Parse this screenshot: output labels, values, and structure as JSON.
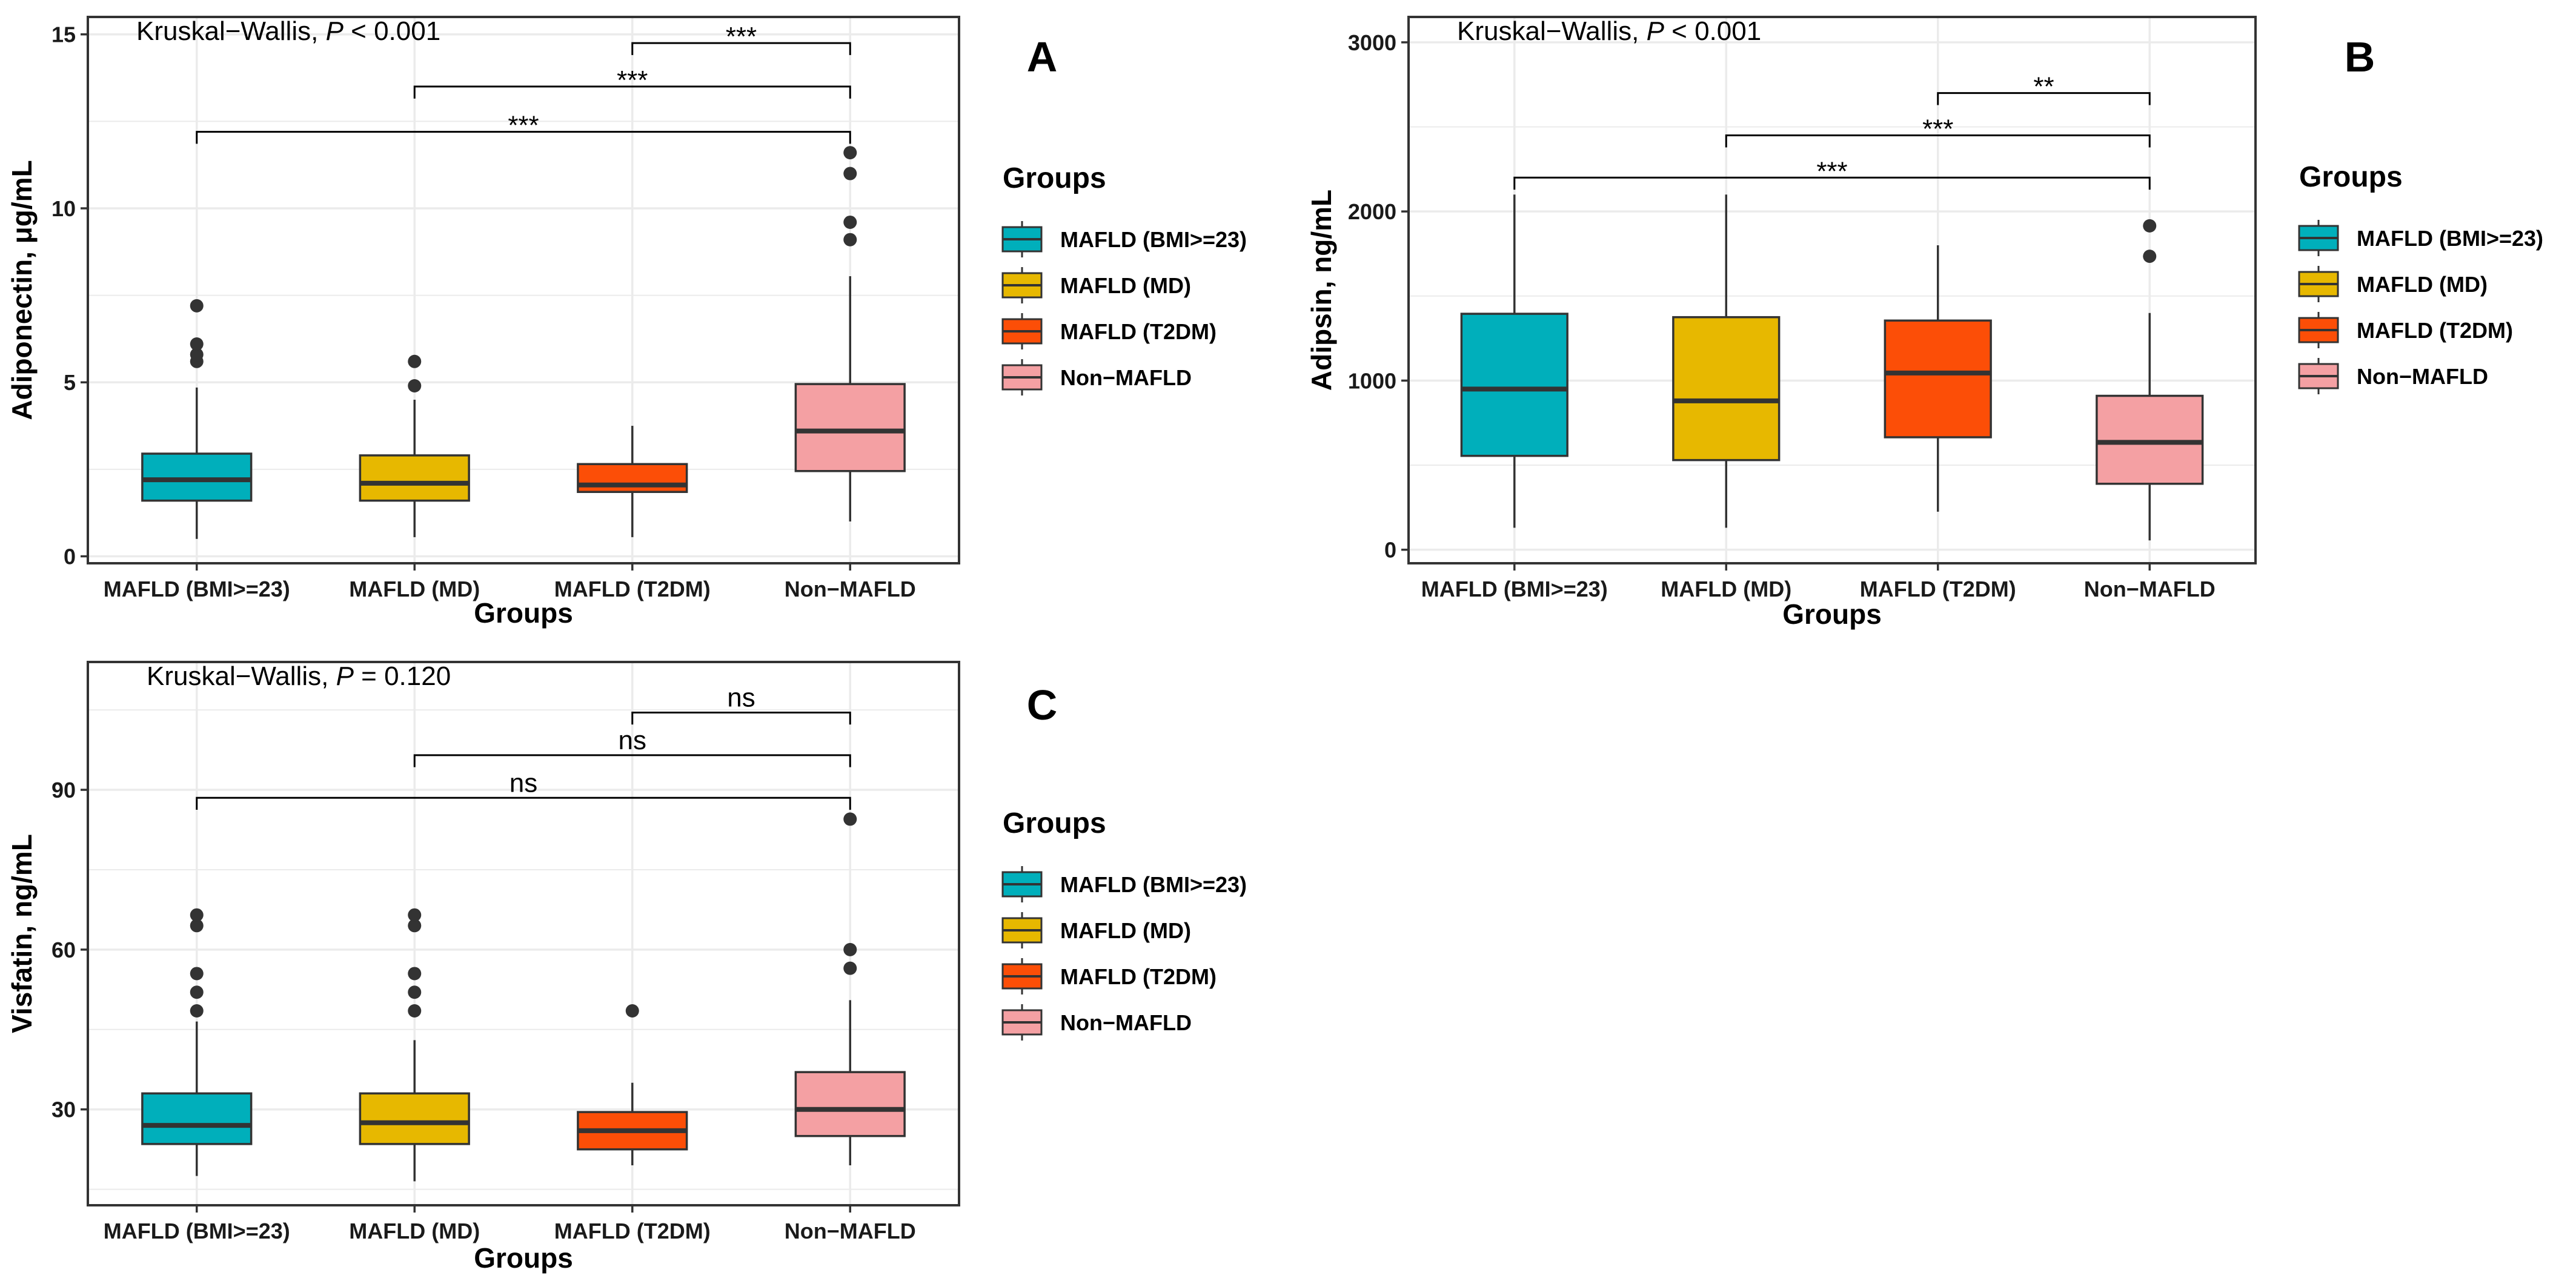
{
  "chart_data": [
    {
      "panel": "A",
      "type": "box",
      "annotation": {
        "prefix": "Kruskal−Wallis, ",
        "p": "P",
        "suffix": " < 0.001"
      },
      "xlabel": "Groups",
      "ylabel": "Adiponectin, μg/mL",
      "ylim": [
        -0.2,
        15.5
      ],
      "yticks": [
        0,
        5,
        10,
        15
      ],
      "ytick_labels": [
        "0",
        "5",
        "10",
        "15"
      ],
      "grid": true,
      "categories": [
        "MAFLD (BMI>=23)",
        "MAFLD (MD)",
        "MAFLD (T2DM)",
        "Non−MAFLD"
      ],
      "series": [
        {
          "group": "MAFLD (BMI>=23)",
          "whisker_low": 0.5,
          "q1": 1.6,
          "median": 2.2,
          "q3": 2.95,
          "whisker_high": 4.85,
          "outliers": [
            5.6,
            5.8,
            6.1,
            7.2
          ]
        },
        {
          "group": "MAFLD (MD)",
          "whisker_low": 0.55,
          "q1": 1.6,
          "median": 2.1,
          "q3": 2.9,
          "whisker_high": 4.5,
          "outliers": [
            4.9,
            5.6
          ]
        },
        {
          "group": "MAFLD (T2DM)",
          "whisker_low": 0.55,
          "q1": 1.85,
          "median": 2.05,
          "q3": 2.65,
          "whisker_high": 3.75,
          "outliers": []
        },
        {
          "group": "Non−MAFLD",
          "whisker_low": 1.0,
          "q1": 2.45,
          "median": 3.6,
          "q3": 4.95,
          "whisker_high": 8.05,
          "outliers": [
            9.1,
            9.6,
            11.0,
            11.6
          ]
        }
      ],
      "comparisons": [
        {
          "from": "MAFLD (T2DM)",
          "to": "Non−MAFLD",
          "label": "***",
          "y": 14.75
        },
        {
          "from": "MAFLD (MD)",
          "to": "Non−MAFLD",
          "label": "***",
          "y": 13.5
        },
        {
          "from": "MAFLD (BMI>=23)",
          "to": "Non−MAFLD",
          "label": "***",
          "y": 12.2
        }
      ]
    },
    {
      "panel": "B",
      "type": "box",
      "annotation": {
        "prefix": "Kruskal−Wallis, ",
        "p": "P",
        "suffix": " < 0.001"
      },
      "xlabel": "Groups",
      "ylabel": "Adipsin, ng/mL",
      "ylim": [
        -80,
        3150
      ],
      "yticks": [
        0,
        1000,
        2000,
        3000
      ],
      "ytick_labels": [
        "0",
        "1000",
        "2000",
        "3000"
      ],
      "grid": true,
      "categories": [
        "MAFLD (BMI>=23)",
        "MAFLD (MD)",
        "MAFLD (T2DM)",
        "Non−MAFLD"
      ],
      "series": [
        {
          "group": "MAFLD (BMI>=23)",
          "whisker_low": 130,
          "q1": 555,
          "median": 950,
          "q3": 1395,
          "whisker_high": 2100,
          "outliers": []
        },
        {
          "group": "MAFLD (MD)",
          "whisker_low": 130,
          "q1": 530,
          "median": 880,
          "q3": 1375,
          "whisker_high": 2100,
          "outliers": []
        },
        {
          "group": "MAFLD (T2DM)",
          "whisker_low": 225,
          "q1": 665,
          "median": 1045,
          "q3": 1355,
          "whisker_high": 1800,
          "outliers": []
        },
        {
          "group": "Non−MAFLD",
          "whisker_low": 55,
          "q1": 390,
          "median": 635,
          "q3": 910,
          "whisker_high": 1400,
          "outliers": [
            1735,
            1915
          ]
        }
      ],
      "comparisons": [
        {
          "from": "MAFLD (T2DM)",
          "to": "Non−MAFLD",
          "label": "**",
          "y": 2700
        },
        {
          "from": "MAFLD (MD)",
          "to": "Non−MAFLD",
          "label": "***",
          "y": 2450
        },
        {
          "from": "MAFLD (BMI>=23)",
          "to": "Non−MAFLD",
          "label": "***",
          "y": 2200
        }
      ]
    },
    {
      "panel": "C",
      "type": "box",
      "annotation": {
        "prefix": "Kruskal−Wallis, ",
        "p": "P",
        "suffix": " = 0.120"
      },
      "xlabel": "Groups",
      "ylabel": "Visfatin, ng/mL",
      "ylim": [
        12,
        114
      ],
      "yticks": [
        30,
        60,
        90
      ],
      "ytick_labels": [
        "30",
        "60",
        "90"
      ],
      "grid": true,
      "categories": [
        "MAFLD (BMI>=23)",
        "MAFLD (MD)",
        "MAFLD (T2DM)",
        "Non−MAFLD"
      ],
      "series": [
        {
          "group": "MAFLD (BMI>=23)",
          "whisker_low": 17.5,
          "q1": 23.5,
          "median": 27.0,
          "q3": 33.0,
          "whisker_high": 46.5,
          "outliers": [
            48.5,
            52.0,
            55.5,
            64.5,
            66.5
          ]
        },
        {
          "group": "MAFLD (MD)",
          "whisker_low": 16.5,
          "q1": 23.5,
          "median": 27.5,
          "q3": 33.0,
          "whisker_high": 43.0,
          "outliers": [
            48.5,
            52.0,
            55.5,
            64.5,
            66.5
          ]
        },
        {
          "group": "MAFLD (T2DM)",
          "whisker_low": 19.5,
          "q1": 22.5,
          "median": 26.0,
          "q3": 29.5,
          "whisker_high": 35.0,
          "outliers": [
            48.5
          ]
        },
        {
          "group": "Non−MAFLD",
          "whisker_low": 19.5,
          "q1": 25.0,
          "median": 30.0,
          "q3": 37.0,
          "whisker_high": 50.5,
          "outliers": [
            56.5,
            60.0,
            84.5
          ]
        }
      ],
      "comparisons": [
        {
          "from": "MAFLD (T2DM)",
          "to": "Non−MAFLD",
          "label": "ns",
          "y": 104.5
        },
        {
          "from": "MAFLD (MD)",
          "to": "Non−MAFLD",
          "label": "ns",
          "y": 96.5
        },
        {
          "from": "MAFLD (BMI>=23)",
          "to": "Non−MAFLD",
          "label": "ns",
          "y": 88.5
        }
      ]
    }
  ],
  "legend": {
    "title": "Groups",
    "placement": "right",
    "entries": [
      {
        "label": "MAFLD (BMI>=23)",
        "color": "#00AFBB"
      },
      {
        "label": "MAFLD (MD)",
        "color": "#E7B800"
      },
      {
        "label": "MAFLD (T2DM)",
        "color": "#FC4E07"
      },
      {
        "label": "Non−MAFLD",
        "color": "#F4A0A3"
      }
    ]
  },
  "colors": {
    "box_outline": "#333333",
    "median": "#333333",
    "outlier": "#333333",
    "grid": "#EBEBEB",
    "panel_border": "#333333"
  }
}
